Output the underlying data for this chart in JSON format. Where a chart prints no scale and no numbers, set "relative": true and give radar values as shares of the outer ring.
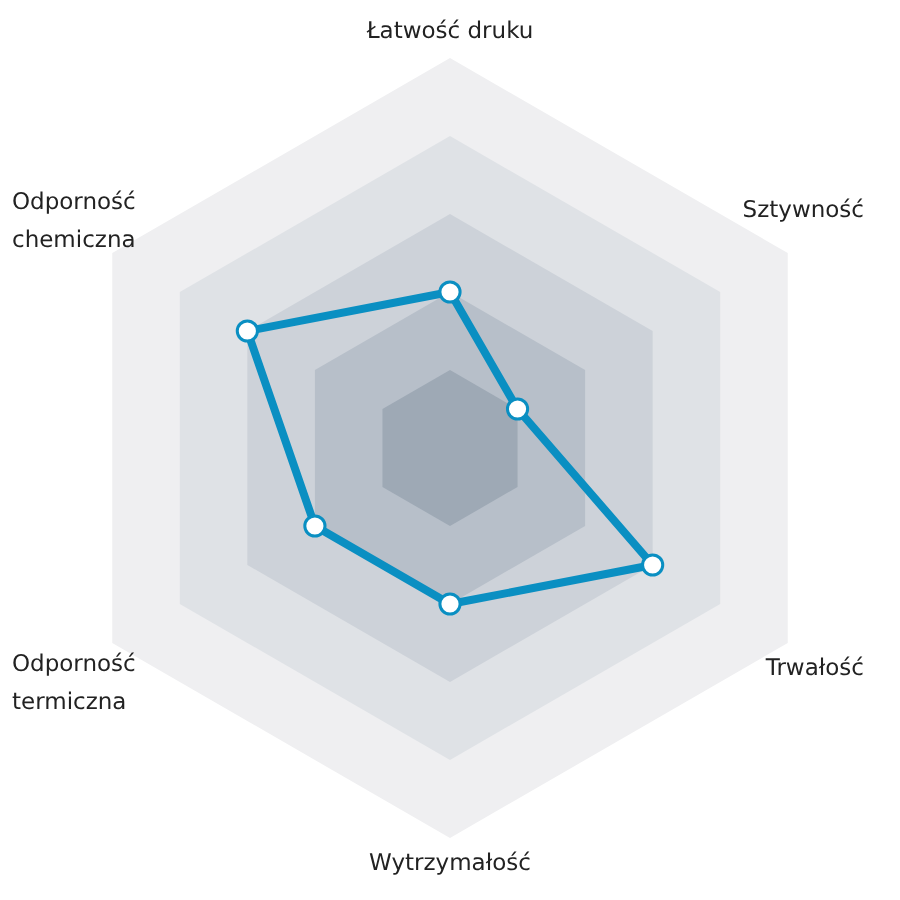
{
  "chart_data": {
    "type": "radar",
    "relative": true,
    "categories": [
      "Łatwość druku",
      "Sztywność",
      "Trwałość",
      "Wytrzymałość",
      "Odporność termiczna",
      "Odporność chemiczna"
    ],
    "series": [
      {
        "color": "#0a8fc2",
        "values": [
          0.4,
          0.2,
          0.6,
          0.4,
          0.4,
          0.6
        ]
      }
    ],
    "marker": "circle",
    "line_style": "solid"
  }
}
